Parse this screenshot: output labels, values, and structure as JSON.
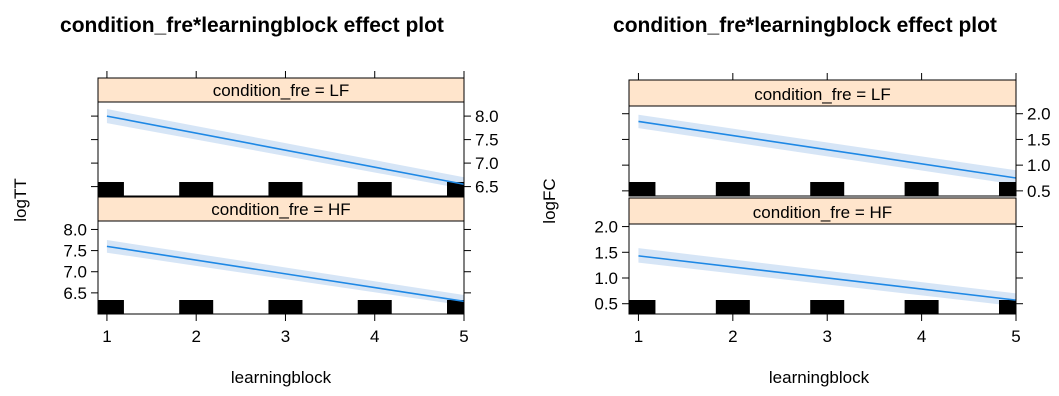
{
  "colors": {
    "strip": "#ffe5cc",
    "fit_line": "#1e88e5",
    "band": "#cfe0f5",
    "rug": "#000000",
    "frame": "#000000"
  },
  "chart_data": [
    {
      "type": "line",
      "title": "condition_fre*learningblock effect plot",
      "xlabel": "learningblock",
      "ylabel": "logTT",
      "x_ticks": [
        1,
        2,
        3,
        4,
        5
      ],
      "xlim": [
        0.9,
        5.0
      ],
      "panels": [
        {
          "strip": "condition_fre = LF",
          "ylim": [
            6.3,
            8.3
          ],
          "y_ticks": [
            6.5,
            7.0,
            7.5,
            8.0
          ],
          "y_tick_labels": [
            "6.5",
            "7.0",
            "7.5",
            "8.0"
          ],
          "tick_side": "right",
          "x": [
            1,
            5
          ],
          "fit": [
            8.0,
            6.55
          ],
          "lower": [
            7.85,
            6.45
          ],
          "upper": [
            8.15,
            6.7
          ]
        },
        {
          "strip": "condition_fre = HF",
          "ylim": [
            6.0,
            8.2
          ],
          "y_ticks": [
            6.5,
            7.0,
            7.5,
            8.0
          ],
          "y_tick_labels": [
            "6.5",
            "7.0",
            "7.5",
            "8.0"
          ],
          "tick_side": "left",
          "x": [
            1,
            5
          ],
          "fit": [
            7.6,
            6.3
          ],
          "lower": [
            7.45,
            6.2
          ],
          "upper": [
            7.75,
            6.45
          ]
        }
      ],
      "rug_x": [
        1,
        2,
        3,
        4,
        5
      ]
    },
    {
      "type": "line",
      "title": "condition_fre*learningblock effect plot",
      "xlabel": "learningblock",
      "ylabel": "logFC",
      "x_ticks": [
        1,
        2,
        3,
        4,
        5
      ],
      "xlim": [
        0.9,
        5.0
      ],
      "panels": [
        {
          "strip": "condition_fre = LF",
          "ylim": [
            0.4,
            2.15
          ],
          "y_ticks": [
            0.5,
            1.0,
            1.5,
            2.0
          ],
          "y_tick_labels": [
            "0.5",
            "1.0",
            "1.5",
            "2.0"
          ],
          "tick_side": "right",
          "x": [
            1,
            5
          ],
          "fit": [
            1.85,
            0.75
          ],
          "lower": [
            1.72,
            0.62
          ],
          "upper": [
            1.98,
            0.9
          ]
        },
        {
          "strip": "condition_fre = HF",
          "ylim": [
            0.3,
            2.05
          ],
          "y_ticks": [
            0.5,
            1.0,
            1.5,
            2.0
          ],
          "y_tick_labels": [
            "0.5",
            "1.0",
            "1.5",
            "2.0"
          ],
          "tick_side": "left",
          "x": [
            1,
            5
          ],
          "fit": [
            1.43,
            0.57
          ],
          "lower": [
            1.3,
            0.45
          ],
          "upper": [
            1.58,
            0.7
          ]
        }
      ],
      "rug_x": [
        1,
        2,
        3,
        4,
        5
      ]
    }
  ]
}
